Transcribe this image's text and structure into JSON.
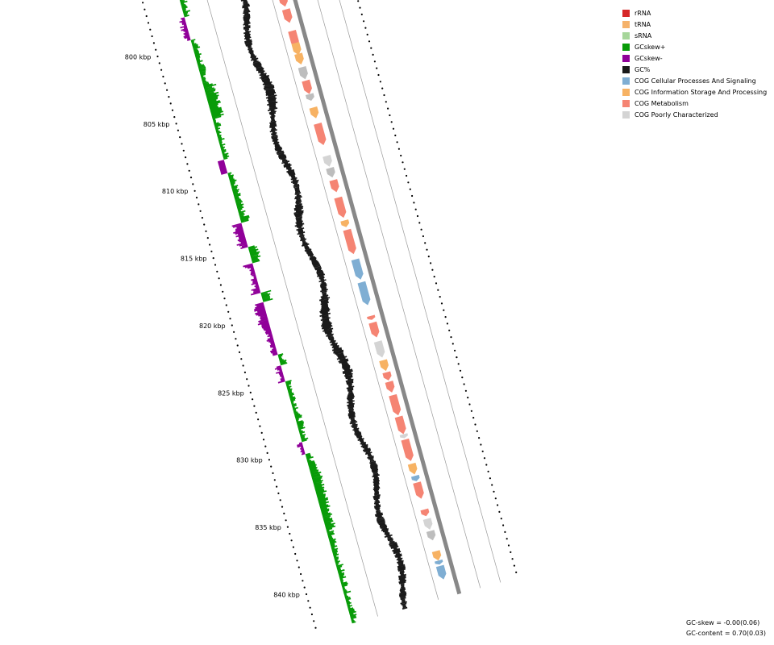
{
  "legend": {
    "items": [
      {
        "label": "rRNA",
        "color": "#d62728"
      },
      {
        "label": "tRNA",
        "color": "#f5b26b"
      },
      {
        "label": "sRNA",
        "color": "#a6d69a"
      },
      {
        "label": "GCskew+",
        "color": "#089b08"
      },
      {
        "label": "GCskew-",
        "color": "#900099"
      },
      {
        "label": "GC%",
        "color": "#1a1a1a"
      },
      {
        "label": "COG Cellular Processes And Signaling",
        "color": "#7faed3"
      },
      {
        "label": "COG Information Storage And Processing",
        "color": "#f7b263"
      },
      {
        "label": "COG Metabolism",
        "color": "#f58473"
      },
      {
        "label": "COG Poorly Characterized",
        "color": "#d4d4d4"
      }
    ]
  },
  "stats": {
    "gc_skew": "GC-skew = -0.00(0.06)",
    "gc_content": "GC-content = 0.70(0.03)"
  },
  "axis": {
    "labels": [
      "800 kbp",
      "805 kbp",
      "810 kbp",
      "815 kbp",
      "820 kbp",
      "825 kbp",
      "830 kbp",
      "835 kbp",
      "840 kbp"
    ]
  },
  "track_colors": {
    "skew_pos": "#089b08",
    "skew_neg": "#900099",
    "gc": "#1a1a1a",
    "backbone": "#888888",
    "guide": "#9a9a9a"
  },
  "features": [
    {
      "pos": 795.0,
      "len": 0.9,
      "cat": "info",
      "strand": 1
    },
    {
      "pos": 796.4,
      "len": 1.0,
      "cat": "poor",
      "strand": 1
    },
    {
      "pos": 797.8,
      "len": 1.3,
      "cat": "metab",
      "strand": 1
    },
    {
      "pos": 799.3,
      "len": 1.0,
      "cat": "metab",
      "strand": 1
    },
    {
      "pos": 800.9,
      "len": 1.2,
      "cat": "metab",
      "strand": 1
    },
    {
      "pos": 801.8,
      "len": 0.9,
      "cat": "info",
      "strand": 1
    },
    {
      "pos": 802.6,
      "len": 0.8,
      "cat": "info",
      "strand": 1
    },
    {
      "pos": 803.6,
      "len": 0.9,
      "cat": "poor",
      "strand": 1
    },
    {
      "pos": 804.6,
      "len": 1.0,
      "cat": "metab",
      "strand": 1
    },
    {
      "pos": 805.6,
      "len": 0.5,
      "cat": "poor",
      "strand": 1
    },
    {
      "pos": 806.6,
      "len": 0.8,
      "cat": "info",
      "strand": 1
    },
    {
      "pos": 807.8,
      "len": 1.6,
      "cat": "metab",
      "strand": 1
    },
    {
      "pos": 810.2,
      "len": 0.8,
      "cat": "poor",
      "strand": 1
    },
    {
      "pos": 811.1,
      "len": 0.7,
      "cat": "poor",
      "strand": 1
    },
    {
      "pos": 812.0,
      "len": 0.9,
      "cat": "metab",
      "strand": 1
    },
    {
      "pos": 813.3,
      "len": 1.5,
      "cat": "metab",
      "strand": 1
    },
    {
      "pos": 815.0,
      "len": 0.5,
      "cat": "info",
      "strand": 1
    },
    {
      "pos": 815.7,
      "len": 1.8,
      "cat": "metab",
      "strand": 1
    },
    {
      "pos": 817.9,
      "len": 1.5,
      "cat": "cell",
      "strand": 1
    },
    {
      "pos": 819.6,
      "len": 1.7,
      "cat": "cell",
      "strand": 1
    },
    {
      "pos": 822.1,
      "len": 0.3,
      "cat": "metab",
      "strand": 1
    },
    {
      "pos": 822.6,
      "len": 1.1,
      "cat": "metab",
      "strand": 1
    },
    {
      "pos": 824.0,
      "len": 1.2,
      "cat": "poor",
      "strand": 1
    },
    {
      "pos": 825.4,
      "len": 0.8,
      "cat": "info",
      "strand": 1
    },
    {
      "pos": 826.3,
      "len": 0.6,
      "cat": "metab",
      "strand": 1
    },
    {
      "pos": 827.0,
      "len": 0.8,
      "cat": "metab",
      "strand": 1
    },
    {
      "pos": 828.0,
      "len": 1.5,
      "cat": "metab",
      "strand": 1
    },
    {
      "pos": 829.6,
      "len": 1.3,
      "cat": "metab",
      "strand": 1
    },
    {
      "pos": 830.9,
      "len": 0.3,
      "cat": "poor",
      "strand": 1
    },
    {
      "pos": 831.3,
      "len": 1.6,
      "cat": "metab",
      "strand": 1
    },
    {
      "pos": 833.1,
      "len": 0.8,
      "cat": "info",
      "strand": 1
    },
    {
      "pos": 834.0,
      "len": 0.4,
      "cat": "cell",
      "strand": 1
    },
    {
      "pos": 834.5,
      "len": 1.2,
      "cat": "metab",
      "strand": 1
    },
    {
      "pos": 836.5,
      "len": 0.5,
      "cat": "metab",
      "strand": 1
    },
    {
      "pos": 837.2,
      "len": 0.8,
      "cat": "poor",
      "strand": 1
    },
    {
      "pos": 838.1,
      "len": 0.7,
      "cat": "poor",
      "strand": 1
    },
    {
      "pos": 839.6,
      "len": 0.7,
      "cat": "info",
      "strand": 1
    },
    {
      "pos": 840.3,
      "len": 0.3,
      "cat": "cell",
      "strand": 1
    },
    {
      "pos": 840.7,
      "len": 1.0,
      "cat": "cell",
      "strand": 1
    }
  ]
}
